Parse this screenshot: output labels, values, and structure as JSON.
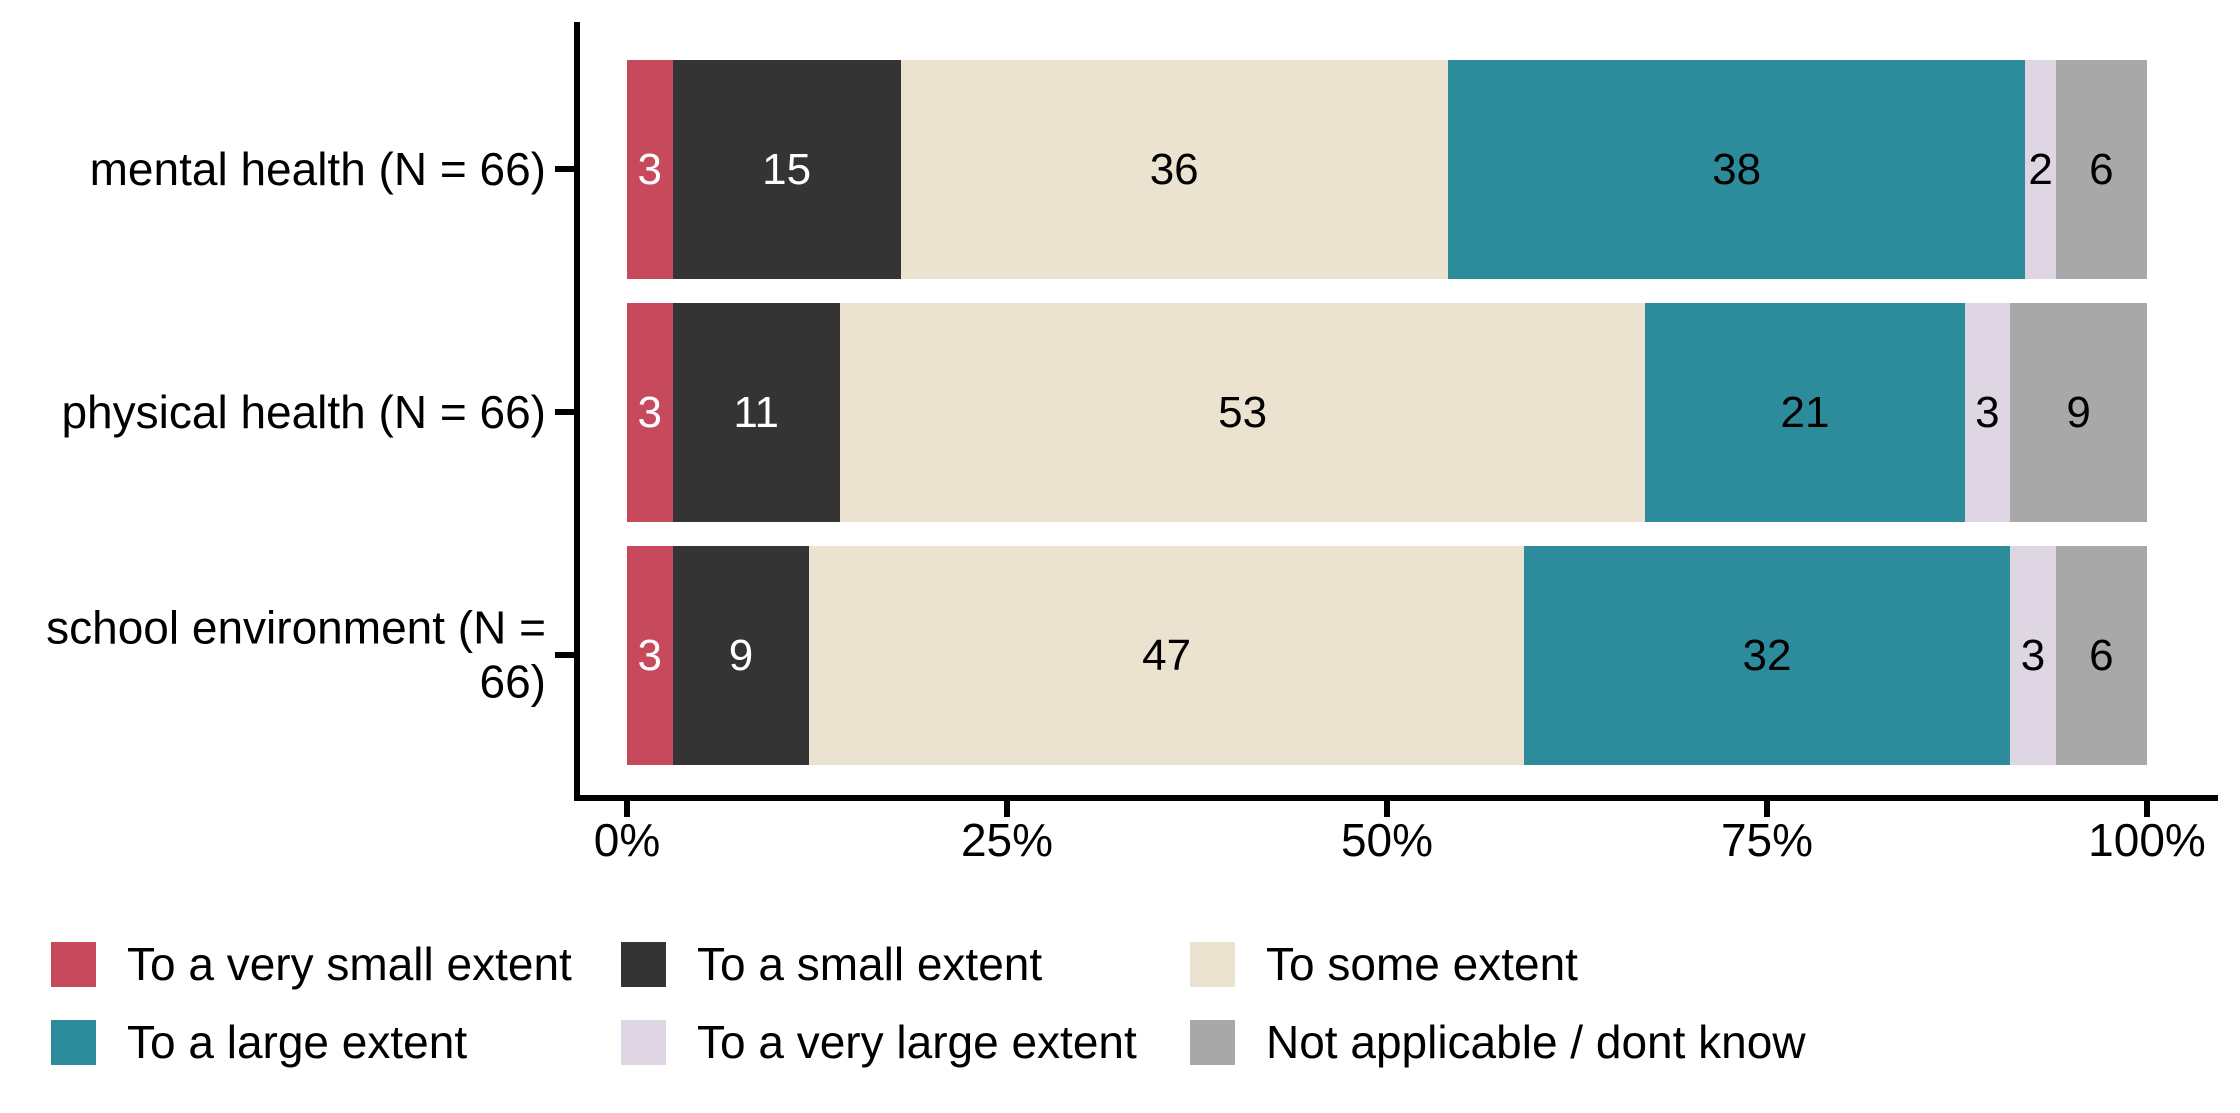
{
  "chart_data": {
    "type": "bar",
    "orientation": "horizontal",
    "stacked": true,
    "unit": "percent",
    "title": "",
    "xlabel": "",
    "ylabel": "",
    "xlim": [
      0,
      100
    ],
    "grid": false,
    "legend_position": "bottom",
    "categories": [
      "mental health (N = 66)",
      "physical health (N = 66)",
      "school environment (N =\n66)"
    ],
    "x_ticks": [
      "0%",
      "25%",
      "50%",
      "75%",
      "100%"
    ],
    "series": [
      {
        "name": "To a very small extent",
        "color": "#C6495C",
        "label_color": "#FFFFFF",
        "values": [
          3,
          3,
          3
        ]
      },
      {
        "name": "To a small extent",
        "color": "#343434",
        "label_color": "#FFFFFF",
        "values": [
          15,
          11,
          9
        ]
      },
      {
        "name": "To some extent",
        "color": "#ECE2D0",
        "label_color": "#000000",
        "values": [
          36,
          53,
          47
        ]
      },
      {
        "name": "To a large extent",
        "color": "#2D8C9B",
        "label_color": "#000000",
        "values": [
          38,
          21,
          32
        ]
      },
      {
        "name": "To a very large extent",
        "color": "#DED6E2",
        "label_color": "#000000",
        "values": [
          2,
          3,
          3
        ]
      },
      {
        "name": "Not applicable / dont know",
        "color": "#A8A8A8",
        "label_color": "#000000",
        "values": [
          6,
          9,
          6
        ]
      }
    ],
    "axis_color": "#000000",
    "background_color": "#FFFFFF"
  }
}
